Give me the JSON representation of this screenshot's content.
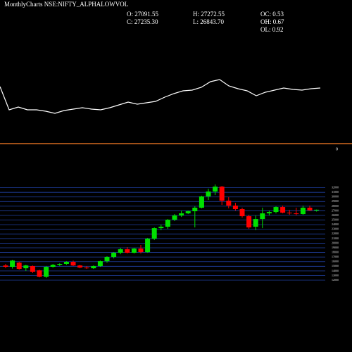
{
  "header": {
    "title": "MonthlyCharts NSE:NIFTY_ALPHALOWVOL",
    "stats": [
      "O: 27091.55",
      "C: 27235.30",
      "H: 27272.55",
      "L: 26843.70",
      "OC: 0.53",
      "OH: 0.67",
      "OL: 0.92"
    ]
  },
  "chart_data": [
    {
      "type": "line",
      "color": "#ffffff",
      "ylim": [
        30,
        95
      ],
      "values": [
        77,
        44,
        48,
        44,
        44,
        42,
        39,
        43,
        45,
        47,
        45,
        44,
        47,
        51,
        55,
        52,
        54,
        56,
        62,
        67,
        71,
        72,
        76,
        84,
        87,
        78,
        74,
        71,
        64,
        69,
        72,
        75,
        73,
        72,
        74,
        75
      ]
    },
    {
      "type": "reference",
      "value": 0,
      "color": "#ff7f27"
    },
    {
      "type": "candlestick",
      "ylim": [
        12000,
        32700
      ],
      "grid": true,
      "grid_color": "#1f3f9f",
      "up_color": "#00e000",
      "down_color": "#ff0000",
      "yticks": [
        12000,
        13000,
        14000,
        15000,
        16000,
        17000,
        18000,
        19000,
        20000,
        21000,
        22000,
        23000,
        24000,
        25000,
        26000,
        27000,
        28000,
        29000,
        30000,
        31000,
        32000
      ],
      "open": [
        15190,
        14890,
        15800,
        14580,
        15040,
        14130,
        12760,
        14890,
        15340,
        15500,
        15960,
        15190,
        14730,
        14580,
        15040,
        16100,
        17020,
        17930,
        18690,
        17930,
        18840,
        18080,
        20980,
        23250,
        23560,
        25080,
        25990,
        26450,
        26910,
        27670,
        30110,
        31170,
        32230,
        29200,
        28130,
        27370,
        25840,
        23560,
        25230,
        26450,
        26750,
        27820,
        26600,
        26450,
        26300,
        27670,
        27091.55
      ],
      "high": [
        15500,
        16410,
        16000,
        15340,
        15190,
        14280,
        15040,
        15500,
        15650,
        16100,
        16250,
        15340,
        15040,
        15190,
        16250,
        17170,
        18080,
        19000,
        19150,
        19000,
        19610,
        21130,
        23410,
        24020,
        25230,
        26300,
        27060,
        27060,
        27970,
        30260,
        31780,
        32690,
        32380,
        29950,
        28740,
        27670,
        26150,
        26000,
        27670,
        27060,
        27970,
        28130,
        27210,
        27670,
        28130,
        28130,
        27272.55
      ],
      "low": [
        14580,
        14500,
        14280,
        13980,
        13520,
        12600,
        12450,
        14730,
        15040,
        15340,
        15040,
        14580,
        14430,
        14430,
        14890,
        15800,
        16710,
        17620,
        17780,
        17780,
        17780,
        17930,
        20670,
        22800,
        23100,
        24780,
        25680,
        26300,
        23410,
        27520,
        29350,
        30410,
        28280,
        27520,
        27060,
        25530,
        23100,
        22800,
        23250,
        25990,
        26450,
        26450,
        26150,
        26000,
        26150,
        27000,
        26843.7
      ],
      "close": [
        14890,
        16250,
        14430,
        15190,
        13830,
        12760,
        14890,
        15340,
        15500,
        15960,
        15190,
        14730,
        14580,
        15040,
        16100,
        17020,
        17930,
        18690,
        17930,
        18840,
        18080,
        20980,
        23250,
        23560,
        25080,
        25990,
        26450,
        26910,
        27670,
        30110,
        31170,
        32230,
        29200,
        28130,
        27370,
        25840,
        23410,
        25230,
        26450,
        26750,
        27820,
        26600,
        26450,
        26300,
        27670,
        27100,
        27235.3
      ]
    }
  ]
}
